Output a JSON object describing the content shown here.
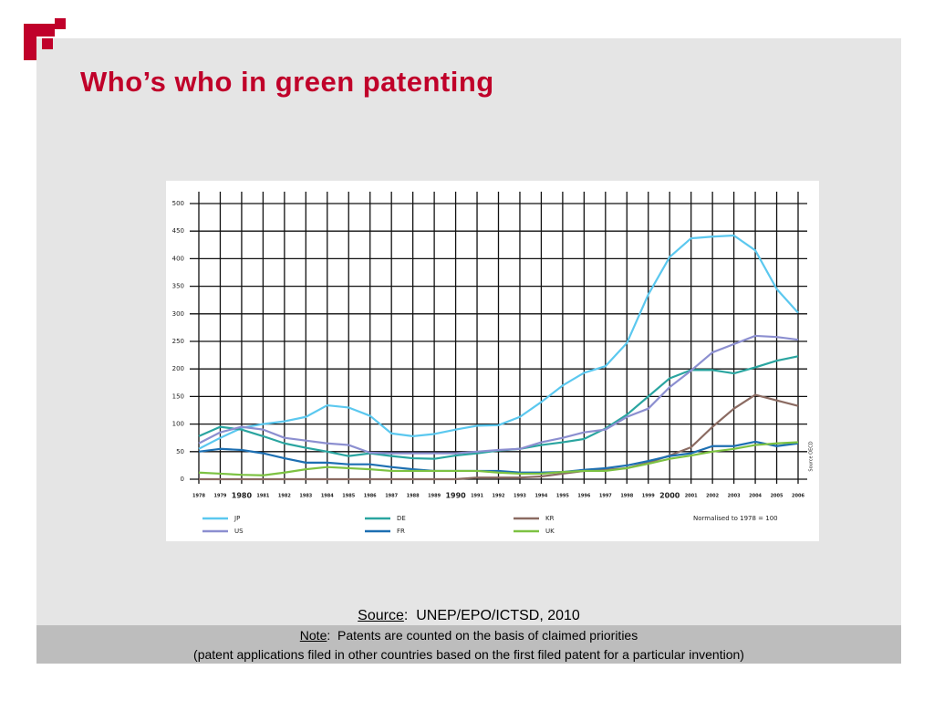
{
  "slide": {
    "title": "Who’s who in green patenting",
    "source_label": "Source",
    "source_text": ":  UNEP/EPO/ICTSD, 2010",
    "note_label": "Note",
    "note_text": ":  Patents are counted on the basis of claimed priorities",
    "note_line2": "(patent applications filed in other countries based on the first filed patent for a particular invention)"
  },
  "chart_data": {
    "type": "line",
    "x": [
      "1978",
      "1979",
      "1980",
      "1981",
      "1982",
      "1983",
      "1984",
      "1985",
      "1986",
      "1987",
      "1988",
      "1989",
      "1990",
      "1991",
      "1992",
      "1993",
      "1994",
      "1995",
      "1996",
      "1997",
      "1998",
      "1999",
      "2000",
      "2001",
      "2002",
      "2003",
      "2004",
      "2005",
      "2006"
    ],
    "ylim": [
      0,
      500
    ],
    "yticks": [
      0,
      50,
      100,
      150,
      200,
      250,
      300,
      350,
      400,
      450,
      500
    ],
    "grid": true,
    "annotation": "Normalised to 1978 = 100",
    "source_note": "Source OECD",
    "series": [
      {
        "name": "JP",
        "color": "#5bc8ef",
        "values": [
          55,
          75,
          93,
          100,
          105,
          113,
          134,
          130,
          115,
          83,
          78,
          82,
          90,
          97,
          98,
          113,
          140,
          170,
          193,
          205,
          247,
          335,
          403,
          437,
          440,
          442,
          415,
          345,
          302
        ]
      },
      {
        "name": "DE",
        "color": "#2aa5a0",
        "values": [
          78,
          95,
          90,
          78,
          65,
          57,
          50,
          42,
          47,
          42,
          38,
          37,
          43,
          47,
          52,
          55,
          62,
          67,
          73,
          92,
          117,
          150,
          183,
          198,
          198,
          192,
          203,
          215,
          223
        ]
      },
      {
        "name": "KR",
        "color": "#8b6b62",
        "values": [
          0,
          0,
          0,
          0,
          0,
          0,
          0,
          0,
          0,
          0,
          0,
          0,
          0,
          3,
          3,
          3,
          5,
          10,
          15,
          17,
          20,
          30,
          43,
          58,
          95,
          128,
          153,
          143,
          133
        ]
      },
      {
        "name": "US",
        "color": "#8c8fd0",
        "values": [
          65,
          85,
          95,
          90,
          75,
          70,
          65,
          62,
          48,
          47,
          47,
          47,
          47,
          50,
          53,
          55,
          67,
          75,
          85,
          90,
          113,
          128,
          167,
          197,
          230,
          245,
          260,
          258,
          253
        ]
      },
      {
        "name": "FR",
        "color": "#1d6fb2",
        "values": [
          50,
          55,
          53,
          47,
          38,
          30,
          30,
          27,
          27,
          22,
          18,
          15,
          15,
          15,
          15,
          12,
          12,
          13,
          17,
          20,
          25,
          33,
          42,
          47,
          60,
          60,
          68,
          60,
          65
        ]
      },
      {
        "name": "UK",
        "color": "#7dc242",
        "values": [
          12,
          10,
          8,
          7,
          12,
          18,
          22,
          20,
          18,
          15,
          15,
          15,
          15,
          15,
          12,
          10,
          10,
          13,
          15,
          15,
          20,
          28,
          37,
          43,
          50,
          55,
          62,
          65,
          67
        ]
      }
    ]
  }
}
